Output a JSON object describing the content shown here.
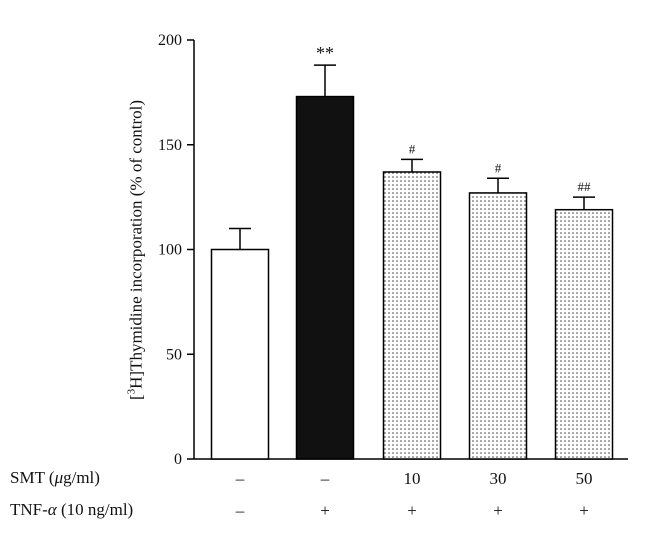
{
  "chart_data": {
    "type": "bar",
    "ylabel": {
      "prefix": "[",
      "sup": "3",
      "rest": "H]Thymidine incorporation (% of control)"
    },
    "ylim": [
      0,
      200
    ],
    "yticks": [
      0,
      50,
      100,
      150,
      200
    ],
    "categories": [
      "1",
      "2",
      "3",
      "4",
      "5"
    ],
    "values": [
      100,
      173,
      137,
      127,
      119
    ],
    "errors": [
      10,
      15,
      6,
      7,
      6
    ],
    "significance": [
      "",
      "**",
      "#",
      "#",
      "##"
    ],
    "fills": [
      "white",
      "black",
      "dotted",
      "dotted",
      "dotted"
    ],
    "conditions": {
      "smt": {
        "label_pre": "SMT (",
        "label_mu": "μ",
        "label_post": "g/ml)",
        "values": [
          "–",
          "–",
          "10",
          "30",
          "50"
        ]
      },
      "tnf": {
        "label_pre": "TNF-",
        "label_alpha": "α",
        "label_post": " (10 ng/ml)",
        "values": [
          "–",
          "+",
          "+",
          "+",
          "+"
        ]
      }
    },
    "grid": false,
    "legend": "none"
  }
}
